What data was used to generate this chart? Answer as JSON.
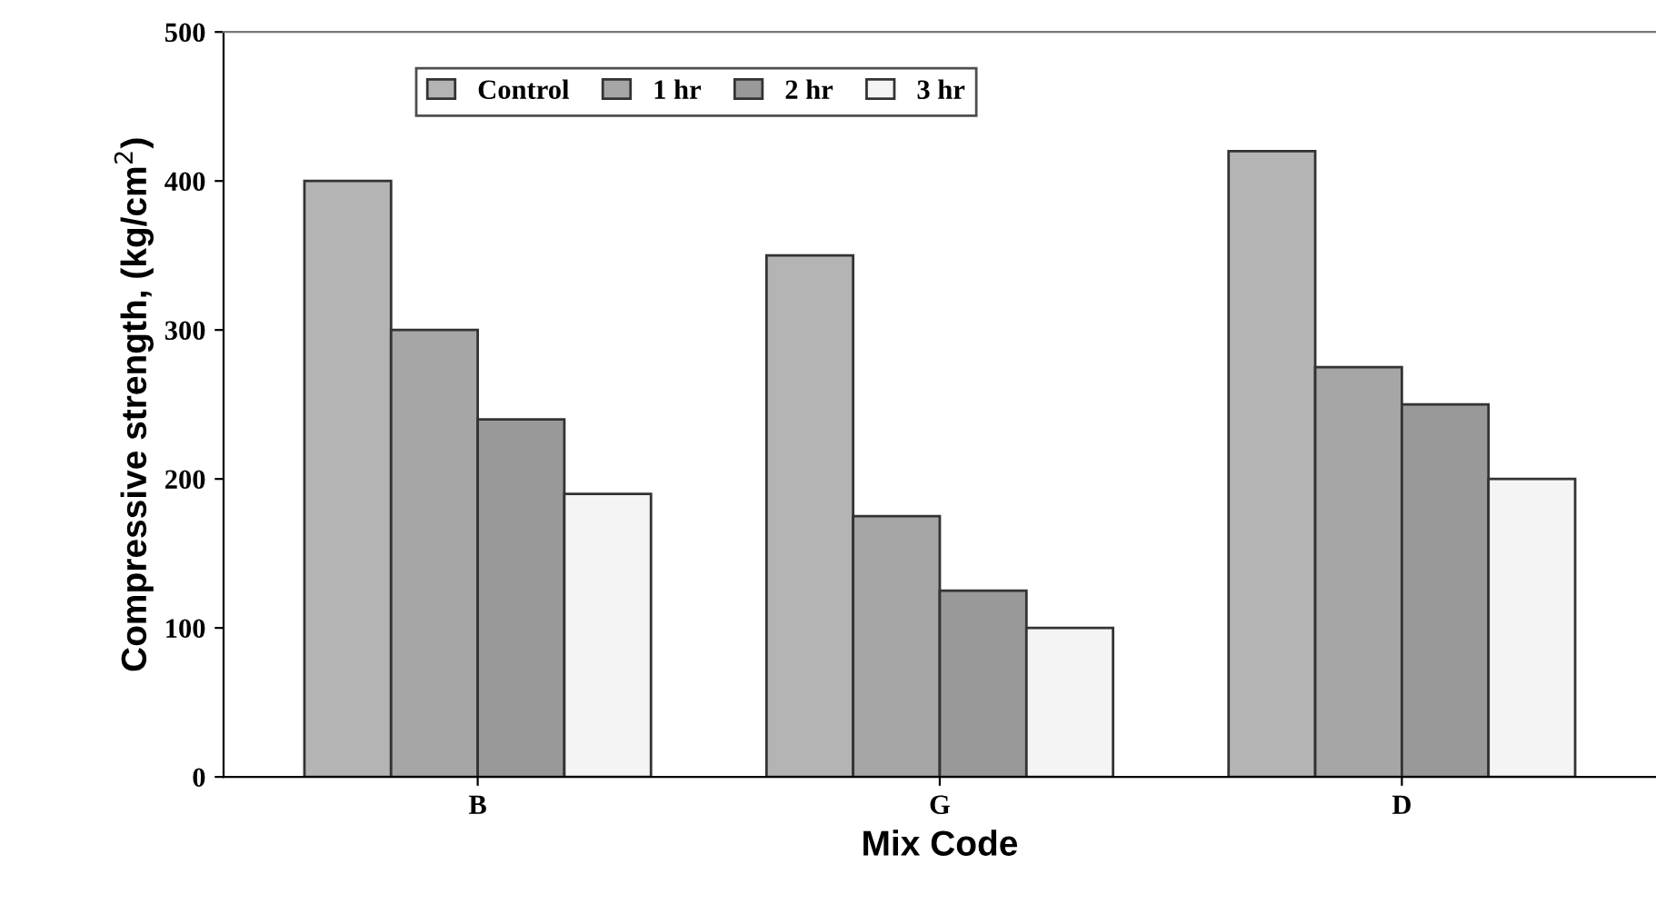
{
  "chart_data": {
    "type": "bar",
    "xlabel": "Mix Code",
    "ylabel": "Compressive strength, (kg/cm$^{2}$)",
    "categories": [
      "B",
      "G",
      "D"
    ],
    "series": [
      {
        "name": "Control",
        "color": "#b4b4b4",
        "values": [
          400,
          350,
          420
        ]
      },
      {
        "name": "1 hr",
        "color": "#a6a6a6",
        "values": [
          300,
          175,
          275
        ]
      },
      {
        "name": "2 hr",
        "color": "#999999",
        "values": [
          240,
          125,
          250
        ]
      },
      {
        "name": "3 hr",
        "color": "#f4f4f4",
        "values": [
          190,
          100,
          200
        ]
      }
    ],
    "ylim": [
      0,
      500
    ],
    "yticks": [
      0,
      100,
      200,
      300,
      400,
      500
    ],
    "grid": false,
    "legend": "top"
  }
}
